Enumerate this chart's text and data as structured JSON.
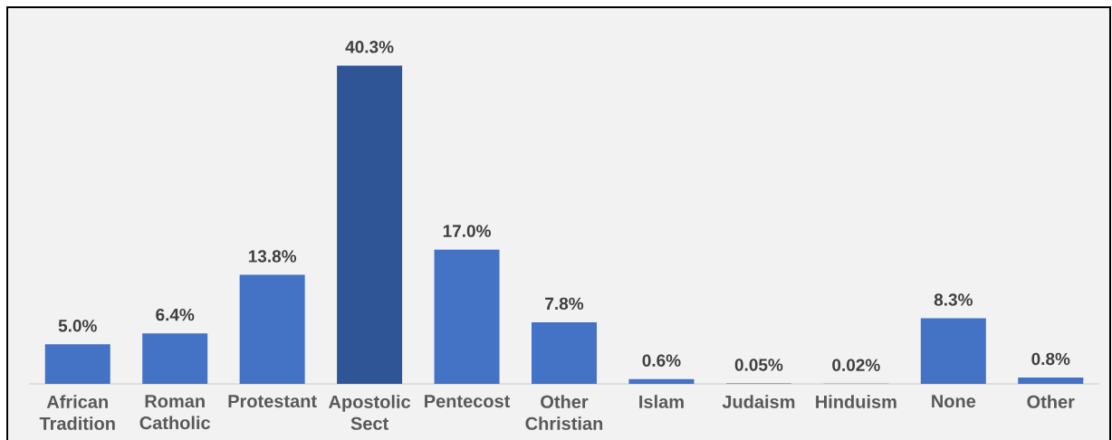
{
  "chart_data": {
    "type": "bar",
    "categories": [
      "African Tradition",
      "Roman Catholic",
      "Protestant",
      "Apostolic Sect",
      "Pentecost",
      "Other Christian",
      "Islam",
      "Judaism",
      "Hinduism",
      "None",
      "Other"
    ],
    "values": [
      5.0,
      6.4,
      13.8,
      40.3,
      17.0,
      7.8,
      0.6,
      0.05,
      0.02,
      8.3,
      0.8
    ],
    "value_labels": [
      "5.0%",
      "6.4%",
      "13.8%",
      "40.3%",
      "17.0%",
      "7.8%",
      "0.6%",
      "0.05%",
      "0.02%",
      "8.3%",
      "0.8%"
    ],
    "colors": [
      "#4472c4",
      "#4472c4",
      "#4472c4",
      "#2f5597",
      "#4472c4",
      "#4472c4",
      "#4472c4",
      "#4472c4",
      "#4472c4",
      "#4472c4",
      "#4472c4"
    ],
    "tick_labels": "x"
  }
}
